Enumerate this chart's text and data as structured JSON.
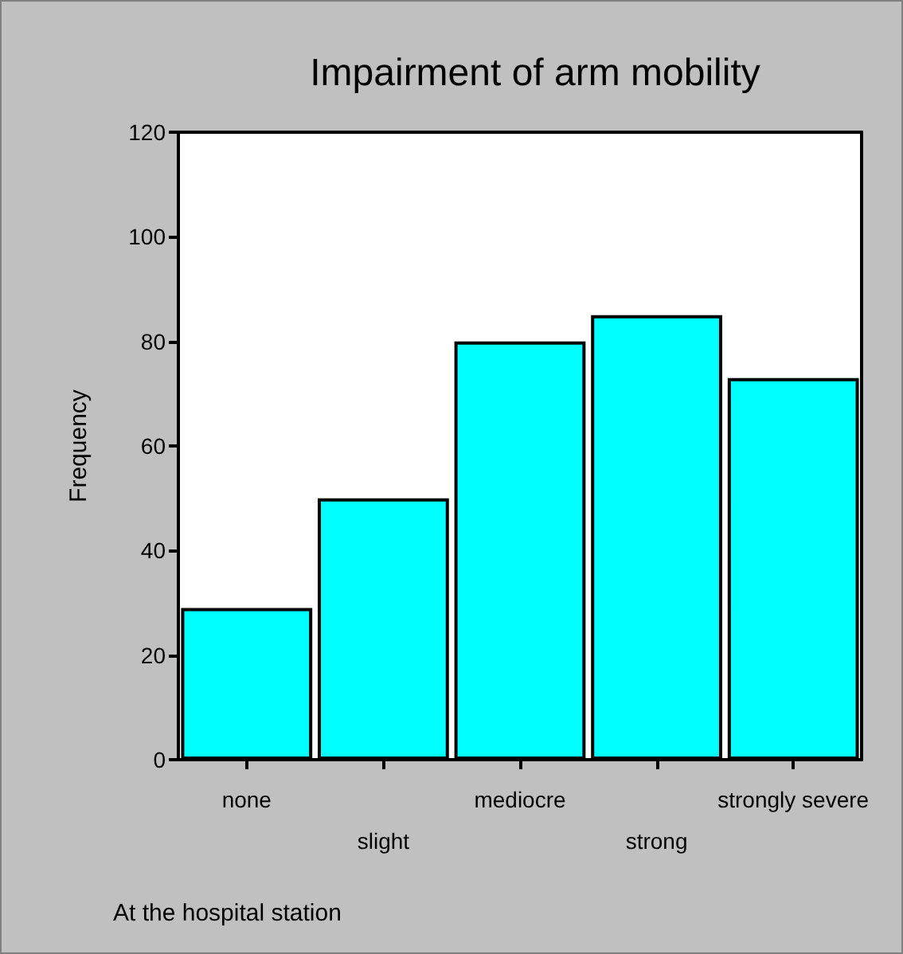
{
  "chart_data": {
    "type": "bar",
    "title": "Impairment of arm mobility",
    "ylabel": "Frequency",
    "categories": [
      "none",
      "slight",
      "mediocre",
      "strong",
      "strongly severe"
    ],
    "values": [
      29,
      50,
      80,
      85,
      73
    ],
    "color": "#00ffff",
    "ylim": [
      0,
      120
    ],
    "yticks": [
      0,
      20,
      40,
      60,
      80,
      100,
      120
    ],
    "grid": false,
    "annotations": [
      "At the hospital station"
    ]
  }
}
